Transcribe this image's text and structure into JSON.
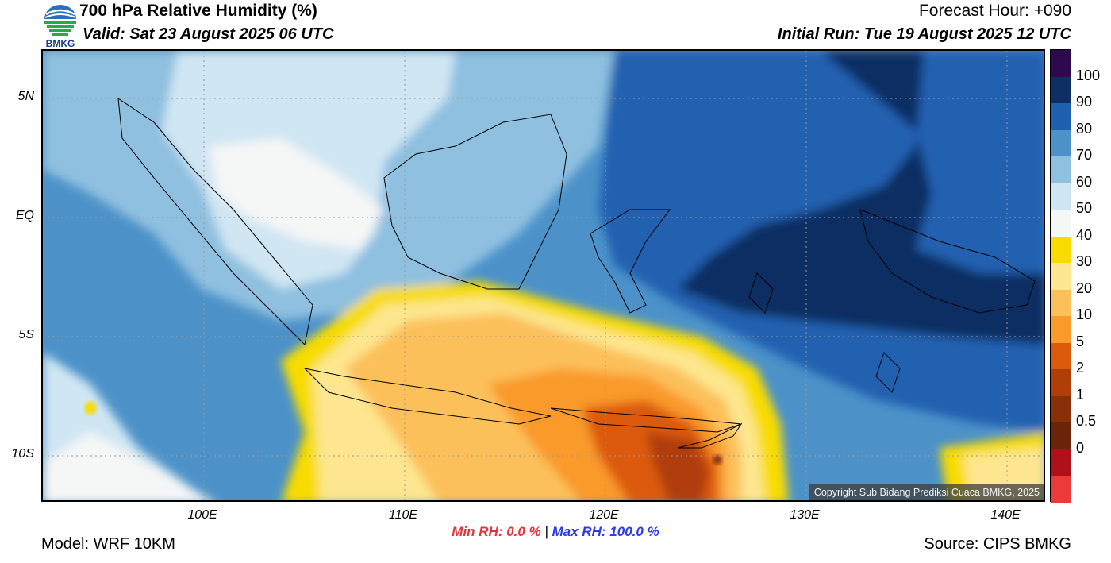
{
  "header": {
    "title": "700 hPa Relative Humidity (%)",
    "valid": "Valid: Sat 23 August 2025 06 UTC",
    "forecast_hour": "Forecast Hour: +090",
    "initial_run": "Initial Run: Tue 19 August 2025 12 UTC"
  },
  "logo": {
    "text": "BMKG",
    "icon": "bmkg-logo-icon"
  },
  "map": {
    "lat_labels": [
      "5N",
      "EQ",
      "5S",
      "10S"
    ],
    "lon_labels": [
      "100E",
      "110E",
      "120E",
      "130E",
      "140E"
    ],
    "copyright": "Copyright Sub Bidang Prediksi Cuaca BMKG, 2025"
  },
  "colorbar": {
    "labels": [
      "100",
      "90",
      "80",
      "70",
      "60",
      "50",
      "40",
      "30",
      "20",
      "10",
      "5",
      "2",
      "1",
      "0.5",
      "0"
    ],
    "colors": [
      "#2d0a4e",
      "#0d2f63",
      "#2060b0",
      "#4c92c9",
      "#8fc0e0",
      "#d0e6f3",
      "#f5f6f6",
      "#f8dc00",
      "#fde68f",
      "#fcc05a",
      "#f99a2a",
      "#dc5a0c",
      "#b03e08",
      "#8a3008",
      "#6b2408",
      "#b0101a",
      "#ea3a3a"
    ]
  },
  "footer": {
    "min_rh": "Min RH:   0.0 %",
    "separator": "|",
    "max_rh": "Max RH: 100.0 %",
    "model": "Model: WRF 10KM",
    "source": "Source: CIPS BMKG"
  }
}
